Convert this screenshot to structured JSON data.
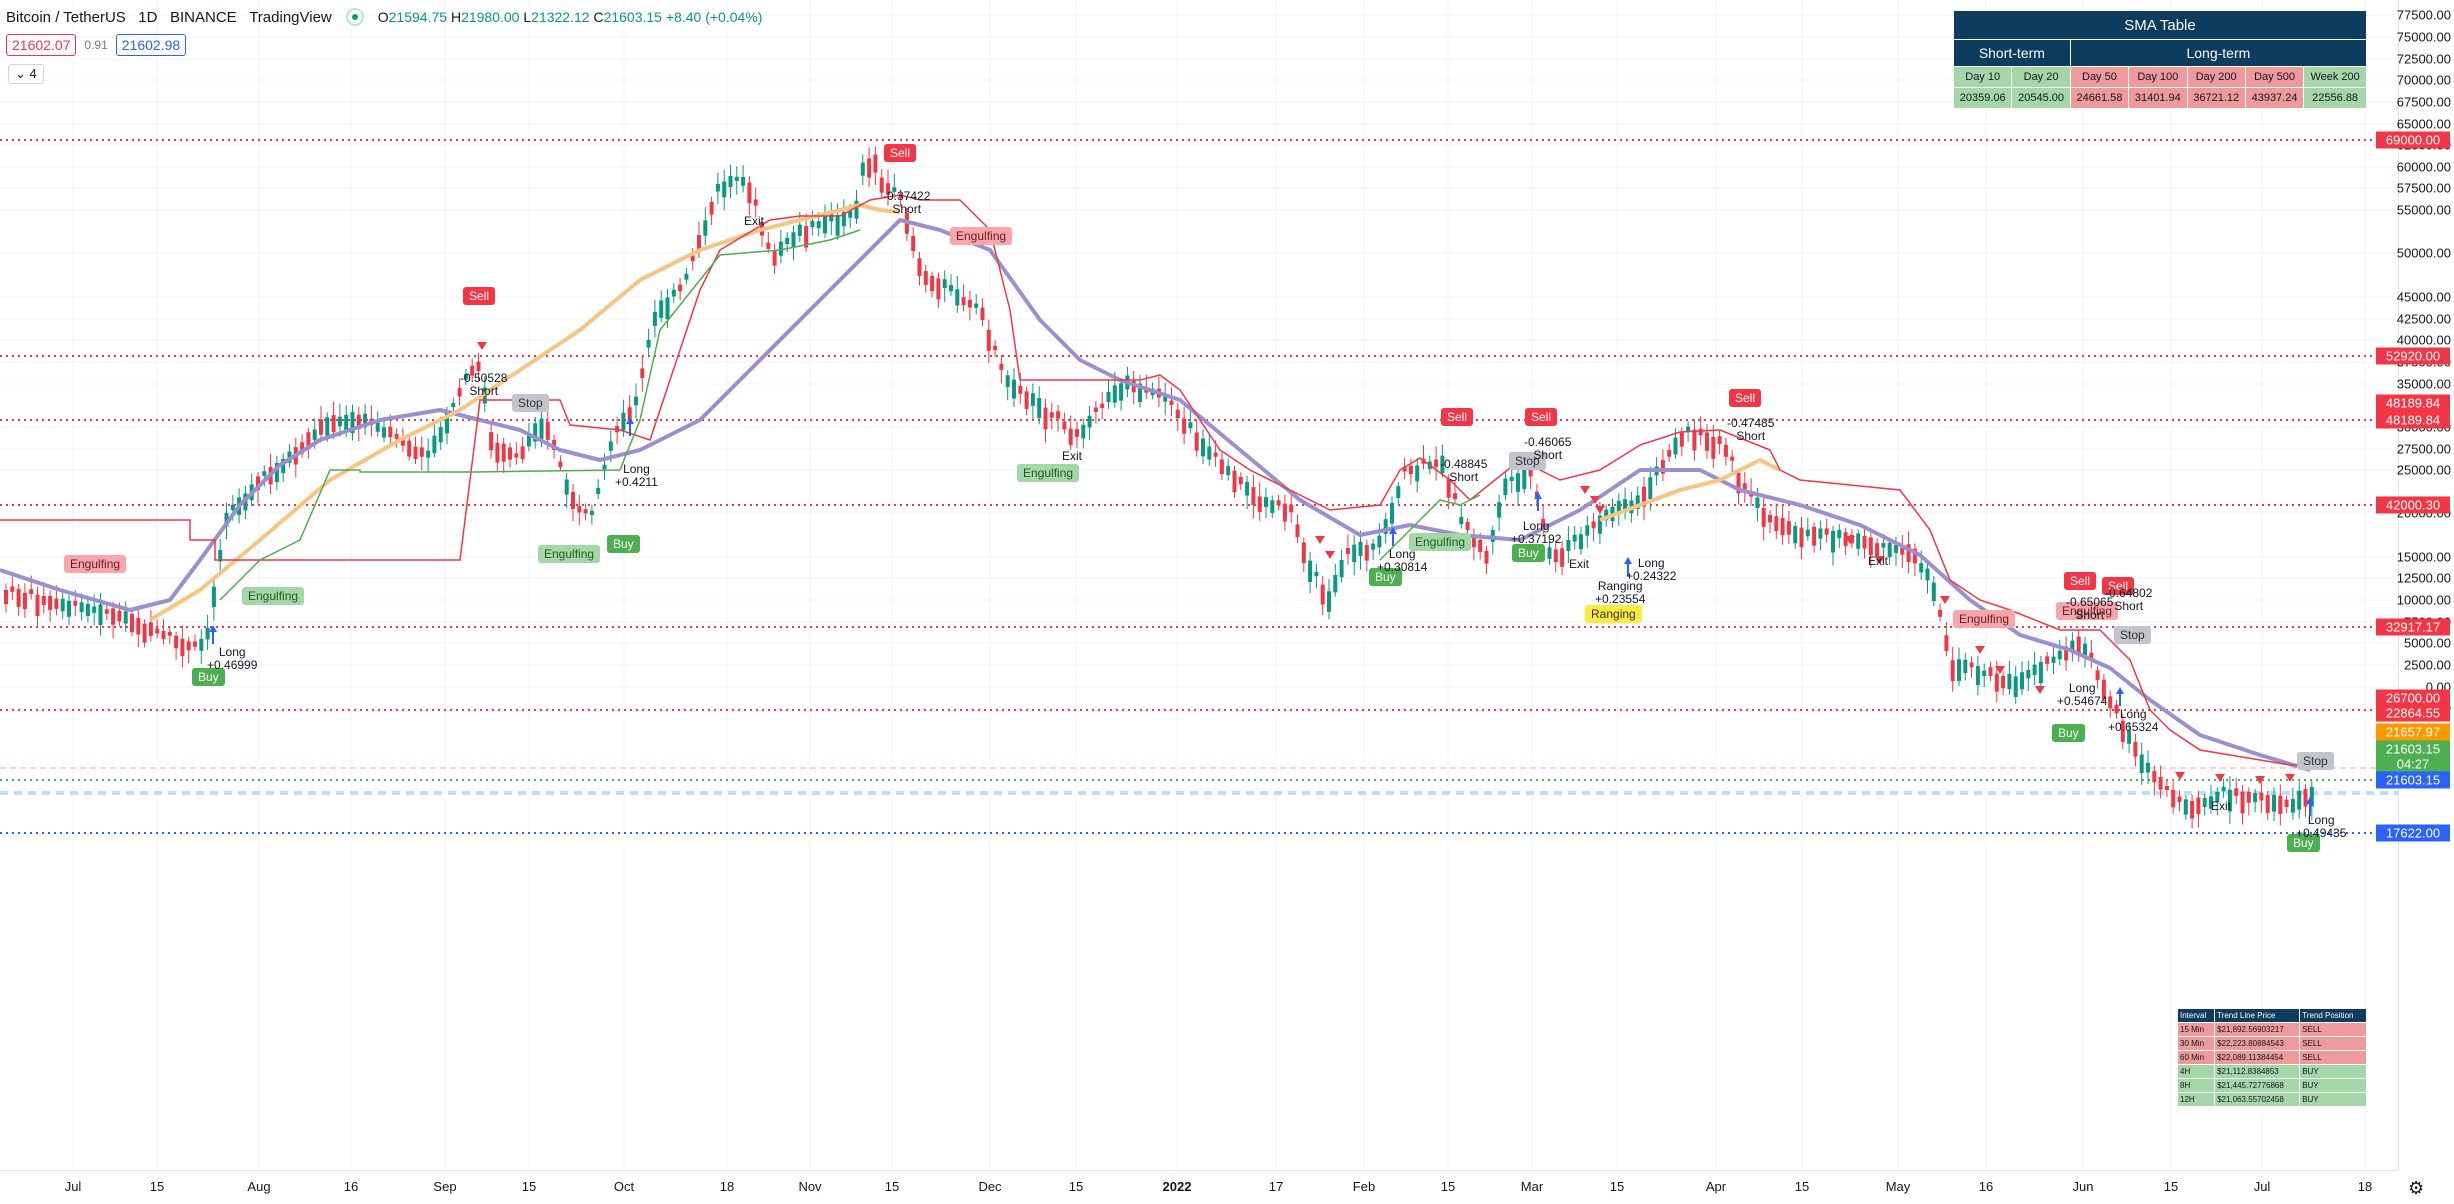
{
  "header": {
    "symbol": "Bitcoin / TetherUS",
    "interval": "1D",
    "exchange": "BINANCE",
    "provider": "TradingView",
    "ohlc": {
      "o_label": "O",
      "o": "21594.75",
      "h_label": "H",
      "h": "21980.00",
      "l_label": "L",
      "l": "21322.12",
      "c_label": "C",
      "c": "21603.15",
      "change": "+8.40 (+0.04%)"
    },
    "sell_price": "21602.07",
    "spread": "0.91",
    "buy_price": "21602.98",
    "indicators_count": "4"
  },
  "sma_table": {
    "title": "SMA Table",
    "group_short": "Short-term",
    "group_long": "Long-term",
    "columns": [
      "Day 10",
      "Day 20",
      "Day 50",
      "Day 100",
      "Day 200",
      "Day 500",
      "Week 200"
    ],
    "values": [
      "20359.06",
      "20545.00",
      "24661.58",
      "31401.94",
      "36721.12",
      "43937.24",
      "22556.88"
    ],
    "colors": [
      "green",
      "green",
      "red",
      "red",
      "red",
      "red",
      "green"
    ]
  },
  "trend_table": {
    "headers": [
      "Interval",
      "Trend Line Price",
      "Trend Position"
    ],
    "rows": [
      {
        "interval": "15 Min",
        "price": "$21,892.56903217",
        "position": "SELL"
      },
      {
        "interval": "30 Min",
        "price": "$22,223.80884543",
        "position": "SELL"
      },
      {
        "interval": "60 Min",
        "price": "$22,089.11384454",
        "position": "SELL"
      },
      {
        "interval": "4H",
        "price": "$21,112.8384853",
        "position": "BUY"
      },
      {
        "interval": "8H",
        "price": "$21,445.72776868",
        "position": "BUY"
      },
      {
        "interval": "12H",
        "price": "$21,063.55702458",
        "position": "BUY"
      }
    ]
  },
  "y_axis": {
    "ticks": [
      "77500.00",
      "75000.00",
      "72500.00",
      "70000.00",
      "67500.00",
      "65000.00",
      "62500.00",
      "60000.00",
      "57500.00",
      "55000.00",
      "50000.00",
      "45000.00",
      "42500.00",
      "40000.00",
      "37500.00",
      "35000.00",
      "30000.00",
      "27500.00",
      "25000.00",
      "20000.00",
      "15000.00",
      "12500.00",
      "10000.00",
      "7500.00",
      "5000.00",
      "2500.00",
      "0.00",
      "-2500.00"
    ],
    "price_labels": [
      {
        "value": "69000.00",
        "color": "#f23645"
      },
      {
        "value": "52920.00",
        "color": "#f23645"
      },
      {
        "value": "48189.84",
        "color": "#f23645"
      },
      {
        "value": "48189.84",
        "color": "#f23645"
      },
      {
        "value": "42000.30",
        "color": "#f23645"
      },
      {
        "value": "32917.17",
        "color": "#f23645"
      },
      {
        "value": "26700.00",
        "color": "#f23645"
      },
      {
        "value": "22864.55",
        "color": "#f23645"
      },
      {
        "value": "21657.97",
        "color": "#ff9800"
      },
      {
        "value": "21603.15",
        "color": "#4caf50"
      },
      {
        "value": "04:27",
        "color": "#4caf50"
      },
      {
        "value": "21603.15",
        "color": "#2962ff"
      },
      {
        "value": "17622.00",
        "color": "#2962ff"
      }
    ]
  },
  "x_axis": {
    "ticks": [
      "Jul",
      "15",
      "Aug",
      "16",
      "Sep",
      "15",
      "Oct",
      "18",
      "Nov",
      "15",
      "Dec",
      "15",
      "2022",
      "17",
      "Feb",
      "15",
      "Mar",
      "15",
      "Apr",
      "15",
      "May",
      "16",
      "Jun",
      "15",
      "Jul",
      "18"
    ]
  },
  "markers": {
    "sell": "Sell",
    "buy": "Buy",
    "engulfing": "Engulfing",
    "stop": "Stop",
    "ranging": "Ranging",
    "exit": "Exit",
    "long": "Long",
    "short": "Short",
    "values": [
      "+0.46999",
      "-0.50528",
      "+0.4211",
      "-0.37422",
      "-0.48845",
      "+0.30814",
      "-0.46065",
      "+0.37192",
      "+0.24322",
      "+0.23554",
      "-0.47485",
      "-0.65065",
      "-0.64802",
      "+0.54674",
      "+0.65324",
      "+0.49435"
    ]
  },
  "colors": {
    "up": "#089981",
    "down": "#f23645",
    "sma_purple": "#9c8fd1",
    "sma_orange": "#f9c380",
    "stop_red": "#f23645",
    "support_green": "#4caf50"
  }
}
